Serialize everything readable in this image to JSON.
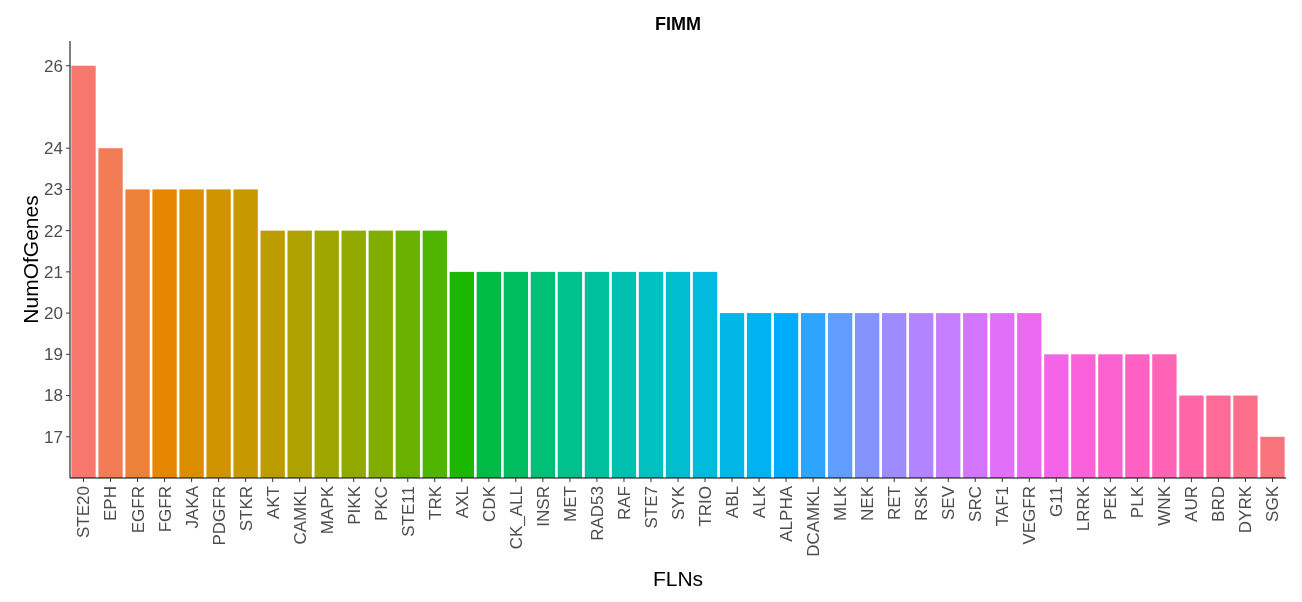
{
  "chart_data": {
    "type": "bar",
    "title": "FIMM",
    "xlabel": "FLNs",
    "ylabel": "NumOfGenes",
    "categories": [
      "STE20",
      "EPH",
      "EGFR",
      "FGFR",
      "JAKA",
      "PDGFR",
      "STKR",
      "AKT",
      "CAMKL",
      "MAPK",
      "PIKK",
      "PKC",
      "STE11",
      "TRK",
      "AXL",
      "CDK",
      "CK_ALL",
      "INSR",
      "MET",
      "RAD53",
      "RAF",
      "STE7",
      "SYK",
      "TRIO",
      "ABL",
      "ALK",
      "ALPHA",
      "DCAMKL",
      "MLK",
      "NEK",
      "RET",
      "RSK",
      "SEV",
      "SRC",
      "TAF1",
      "VEGFR",
      "G11",
      "LRRK",
      "PEK",
      "PLK",
      "WNK",
      "AUR",
      "BRD",
      "DYRK",
      "SGK"
    ],
    "values": [
      26,
      24,
      23,
      23,
      23,
      23,
      23,
      22,
      22,
      22,
      22,
      22,
      22,
      22,
      21,
      21,
      21,
      21,
      21,
      21,
      21,
      21,
      21,
      21,
      20,
      20,
      20,
      20,
      20,
      20,
      20,
      20,
      20,
      20,
      20,
      20,
      19,
      19,
      19,
      19,
      19,
      18,
      18,
      18,
      17
    ],
    "colors": [
      "#F8766D",
      "#F27C55",
      "#EC823A",
      "#E58700",
      "#DB8E00",
      "#D29300",
      "#C79800",
      "#BB9D00",
      "#AEA200",
      "#A0A600",
      "#91AA00",
      "#80AD00",
      "#6BB100",
      "#4FB500",
      "#1AB800",
      "#00BB45",
      "#00BD5F",
      "#00BF76",
      "#00C08B",
      "#00C19E",
      "#00C1B0",
      "#00C0C0",
      "#00BECE",
      "#00BBDB",
      "#00B7E7",
      "#00B2F2",
      "#00ACFC",
      "#2FA4FF",
      "#619CFF",
      "#8494FF",
      "#9E8CFF",
      "#B384FF",
      "#C47EFF",
      "#D376FD",
      "#E070F7",
      "#EA6AF0",
      "#F365E6",
      "#F962DB",
      "#FD61CF",
      "#FF61C2",
      "#FF63B5",
      "#FF66A7",
      "#FF6A99",
      "#FC6F8A",
      "#F9737C"
    ],
    "ylim": [
      16,
      26.6
    ],
    "yticks": [
      17,
      18,
      19,
      20,
      21,
      22,
      23,
      24,
      26
    ],
    "grid": false
  }
}
